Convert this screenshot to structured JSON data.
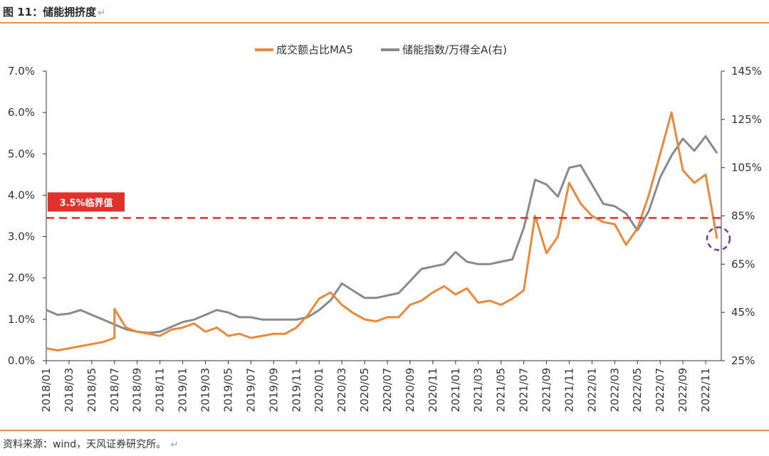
{
  "header": {
    "title": "图 11：储能拥挤度",
    "return_mark": "↵"
  },
  "footer": {
    "source": "资料来源：wind，天风证券研究所。",
    "return_mark": "↵"
  },
  "colors": {
    "orange": "#e8893e",
    "gray": "#8a8a8a",
    "threshold": "#e0312b",
    "circle": "#6a3fa6",
    "rule": "#e8924a"
  },
  "chart_data": {
    "type": "line",
    "title": "图 11：储能拥挤度",
    "legend_position": "top-center",
    "grid": false,
    "y_left": {
      "range": [
        0,
        7
      ],
      "ticks": [
        0,
        1,
        2,
        3,
        4,
        5,
        6,
        7
      ],
      "tick_labels": [
        "0.0%",
        "1.0%",
        "2.0%",
        "3.0%",
        "4.0%",
        "5.0%",
        "6.0%",
        "7.0%"
      ]
    },
    "y_right": {
      "range": [
        25,
        145
      ],
      "ticks": [
        25,
        45,
        65,
        85,
        105,
        125,
        145
      ],
      "tick_labels": [
        "25%",
        "45%",
        "65%",
        "85%",
        "105%",
        "125%",
        "145%"
      ]
    },
    "x_axis": {
      "start": "2018/01",
      "end": "2022/12",
      "tick_labels": [
        "2018/01",
        "2018/03",
        "2018/05",
        "2018/07",
        "2018/09",
        "2018/11",
        "2019/01",
        "2019/03",
        "2019/05",
        "2019/07",
        "2019/09",
        "2019/11",
        "2020/01",
        "2020/03",
        "2020/05",
        "2020/07",
        "2020/09",
        "2020/11",
        "2021/01",
        "2021/03",
        "2021/05",
        "2021/07",
        "2021/09",
        "2021/11",
        "2022/01",
        "2022/03",
        "2022/05",
        "2022/07",
        "2022/09",
        "2022/11"
      ]
    },
    "threshold": {
      "value": 3.45,
      "label": "3.5%临界值"
    },
    "highlight_circle": {
      "x": "2022/12",
      "y": 2.95
    },
    "series": [
      {
        "name": "成交额占比MA5",
        "axis": "left",
        "color": "#e8893e",
        "points": [
          [
            "2018/01",
            0.3
          ],
          [
            "2018/02",
            0.25
          ],
          [
            "2018/03",
            0.3
          ],
          [
            "2018/04",
            0.35
          ],
          [
            "2018/05",
            0.4
          ],
          [
            "2018/06",
            0.45
          ],
          [
            "2018/07",
            0.55
          ],
          [
            "2018/07",
            1.25
          ],
          [
            "2018/08",
            0.8
          ],
          [
            "2018/09",
            0.7
          ],
          [
            "2018/10",
            0.65
          ],
          [
            "2018/11",
            0.6
          ],
          [
            "2018/12",
            0.75
          ],
          [
            "2019/01",
            0.8
          ],
          [
            "2019/02",
            0.9
          ],
          [
            "2019/03",
            0.7
          ],
          [
            "2019/04",
            0.8
          ],
          [
            "2019/05",
            0.6
          ],
          [
            "2019/06",
            0.65
          ],
          [
            "2019/07",
            0.55
          ],
          [
            "2019/08",
            0.6
          ],
          [
            "2019/09",
            0.65
          ],
          [
            "2019/10",
            0.65
          ],
          [
            "2019/11",
            0.8
          ],
          [
            "2019/12",
            1.1
          ],
          [
            "2020/01",
            1.5
          ],
          [
            "2020/02",
            1.65
          ],
          [
            "2020/03",
            1.35
          ],
          [
            "2020/04",
            1.15
          ],
          [
            "2020/05",
            1.0
          ],
          [
            "2020/06",
            0.95
          ],
          [
            "2020/07",
            1.05
          ],
          [
            "2020/08",
            1.05
          ],
          [
            "2020/09",
            1.35
          ],
          [
            "2020/10",
            1.45
          ],
          [
            "2020/11",
            1.65
          ],
          [
            "2020/12",
            1.8
          ],
          [
            "2021/01",
            1.6
          ],
          [
            "2021/02",
            1.75
          ],
          [
            "2021/03",
            1.4
          ],
          [
            "2021/04",
            1.45
          ],
          [
            "2021/05",
            1.35
          ],
          [
            "2021/06",
            1.5
          ],
          [
            "2021/07",
            1.7
          ],
          [
            "2021/08",
            3.5
          ],
          [
            "2021/09",
            2.6
          ],
          [
            "2021/10",
            3.0
          ],
          [
            "2021/11",
            4.3
          ],
          [
            "2021/12",
            3.8
          ],
          [
            "2022/01",
            3.5
          ],
          [
            "2022/02",
            3.35
          ],
          [
            "2022/03",
            3.3
          ],
          [
            "2022/04",
            2.8
          ],
          [
            "2022/05",
            3.2
          ],
          [
            "2022/06",
            4.0
          ],
          [
            "2022/07",
            5.0
          ],
          [
            "2022/08",
            6.0
          ],
          [
            "2022/09",
            4.6
          ],
          [
            "2022/10",
            4.3
          ],
          [
            "2022/11",
            4.5
          ],
          [
            "2022/12",
            2.95
          ]
        ]
      },
      {
        "name": "储能指数/万得全A(右)",
        "axis": "right",
        "color": "#8a8a8a",
        "points": [
          [
            "2018/01",
            46
          ],
          [
            "2018/02",
            44
          ],
          [
            "2018/03",
            44.5
          ],
          [
            "2018/04",
            46
          ],
          [
            "2018/05",
            44
          ],
          [
            "2018/06",
            42
          ],
          [
            "2018/07",
            40
          ],
          [
            "2018/08",
            38
          ],
          [
            "2018/09",
            37
          ],
          [
            "2018/10",
            36.5
          ],
          [
            "2018/11",
            37
          ],
          [
            "2018/12",
            39
          ],
          [
            "2019/01",
            41
          ],
          [
            "2019/02",
            42
          ],
          [
            "2019/03",
            44
          ],
          [
            "2019/04",
            46
          ],
          [
            "2019/05",
            45
          ],
          [
            "2019/06",
            43
          ],
          [
            "2019/07",
            43
          ],
          [
            "2019/08",
            42
          ],
          [
            "2019/09",
            42
          ],
          [
            "2019/10",
            42
          ],
          [
            "2019/11",
            42
          ],
          [
            "2019/12",
            43
          ],
          [
            "2020/01",
            46
          ],
          [
            "2020/02",
            50
          ],
          [
            "2020/03",
            57
          ],
          [
            "2020/04",
            54
          ],
          [
            "2020/05",
            51
          ],
          [
            "2020/06",
            51
          ],
          [
            "2020/07",
            52
          ],
          [
            "2020/08",
            53
          ],
          [
            "2020/09",
            58
          ],
          [
            "2020/10",
            63
          ],
          [
            "2020/11",
            64
          ],
          [
            "2020/12",
            65
          ],
          [
            "2021/01",
            70
          ],
          [
            "2021/02",
            66
          ],
          [
            "2021/03",
            65
          ],
          [
            "2021/04",
            65
          ],
          [
            "2021/05",
            66
          ],
          [
            "2021/06",
            67
          ],
          [
            "2021/07",
            80
          ],
          [
            "2021/08",
            100
          ],
          [
            "2021/09",
            98
          ],
          [
            "2021/10",
            93
          ],
          [
            "2021/11",
            105
          ],
          [
            "2021/12",
            106
          ],
          [
            "2022/01",
            98
          ],
          [
            "2022/02",
            90
          ],
          [
            "2022/03",
            89
          ],
          [
            "2022/04",
            86
          ],
          [
            "2022/05",
            79
          ],
          [
            "2022/06",
            87
          ],
          [
            "2022/07",
            101
          ],
          [
            "2022/08",
            110
          ],
          [
            "2022/09",
            117
          ],
          [
            "2022/10",
            112
          ],
          [
            "2022/11",
            118
          ],
          [
            "2022/12",
            111
          ]
        ]
      }
    ]
  }
}
